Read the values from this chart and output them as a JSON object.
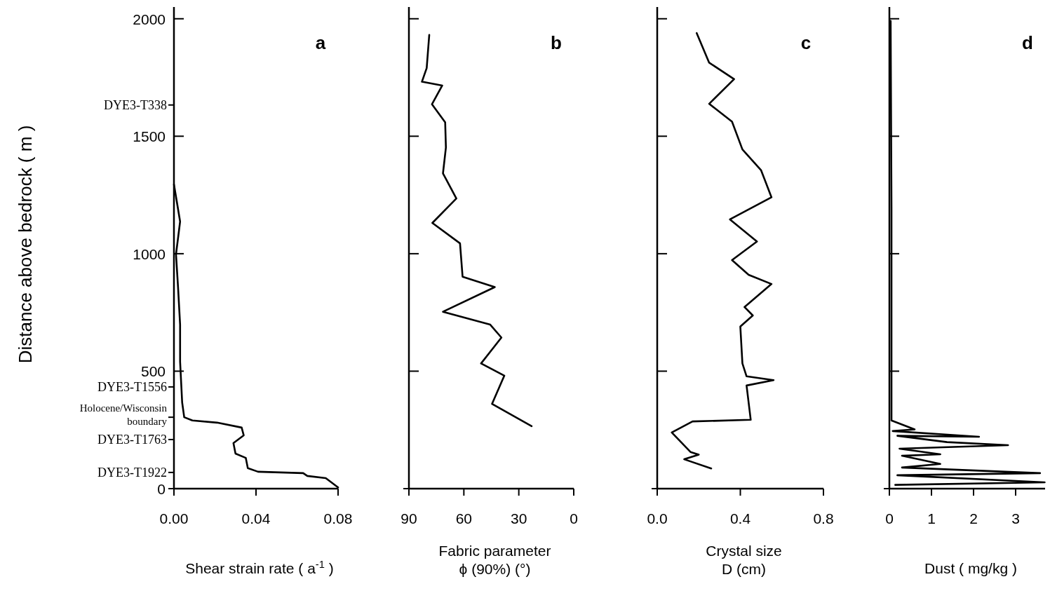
{
  "chart_data": [
    {
      "type": "line",
      "title": "a",
      "xlabel": "Shear strain rate ( a$^{-1}$ )",
      "ylabel": "Distance above bedrock ( m )",
      "xlim": [
        0,
        0.08
      ],
      "ylim": [
        0,
        2050
      ],
      "xticks": [
        {
          "value": 0,
          "label": "0.00"
        },
        {
          "value": 0.04,
          "label": "0.04"
        },
        {
          "value": 0.08,
          "label": "0.08"
        }
      ],
      "yticks": [
        0,
        500,
        1000,
        1500,
        2000,
        {
          "value": 1633,
          "label": "DYE3-T338"
        },
        {
          "value": 433,
          "label": "DYE3-T1556"
        },
        {
          "value": 304,
          "label": "Holocene/Wisconsin\nboundary"
        },
        {
          "value": 209,
          "label": "DYE3-T1763"
        },
        {
          "value": 69,
          "label": "DYE3-T1922"
        }
      ],
      "series": [
        {
          "color": "#000000",
          "x": [
            0,
            0.003,
            0.001,
            0.002,
            0.003,
            0.003,
            0.004,
            0.005,
            0.009,
            0.021,
            0.033,
            0.034,
            0.029,
            0.03,
            0.035,
            0.036,
            0.041,
            0.063,
            0.065,
            0.074,
            0.08
          ],
          "values": [
            1295,
            1137,
            997,
            857,
            698,
            540,
            367,
            304,
            290,
            281,
            260,
            227,
            194,
            149,
            131,
            87,
            72,
            66,
            54,
            45,
            5
          ]
        }
      ]
    },
    {
      "type": "line",
      "title": "b",
      "xlabel": "Fabric parameter\nϕ (90%)   (°)",
      "xlim": [
        90,
        0
      ],
      "ylim": [
        0,
        2050
      ],
      "xticks": [
        90,
        60,
        30,
        0
      ],
      "yticks": [
        0,
        500,
        1000,
        1500,
        2000
      ],
      "tick_labels": "x",
      "series": [
        {
          "color": "#000000",
          "x": [
            78.9,
            80.3,
            82.9,
            71.8,
            77.4,
            70.2,
            69.8,
            71.4,
            64.1,
            77.2,
            62.1,
            60.7,
            43.1,
            71.4,
            45.6,
            39.5,
            50.6,
            37.9,
            44.6,
            23
          ],
          "values": [
            1931,
            1790,
            1732,
            1716,
            1636,
            1559,
            1452,
            1342,
            1235,
            1131,
            1044,
            902,
            858,
            753,
            698,
            643,
            533,
            481,
            361,
            266
          ]
        }
      ]
    },
    {
      "type": "line",
      "title": "c",
      "xlabel": "Crystal size\nD (cm)",
      "xlim": [
        0,
        0.8
      ],
      "ylim": [
        0,
        2050
      ],
      "xticks": [
        {
          "value": 0,
          "label": "0.0"
        },
        {
          "value": 0.4,
          "label": "0.4"
        },
        {
          "value": 0.8,
          "label": "0.8"
        }
      ],
      "yticks": [
        0,
        500,
        1000,
        1500,
        2000
      ],
      "tick_labels": "x",
      "series": [
        {
          "color": "#000000",
          "x": [
            0.19,
            0.25,
            0.37,
            0.25,
            0.36,
            0.41,
            0.5,
            0.55,
            0.35,
            0.48,
            0.36,
            0.44,
            0.55,
            0.42,
            0.46,
            0.4,
            0.41,
            0.43,
            0.56,
            0.43,
            0.45,
            0.17,
            0.07,
            0.16,
            0.2,
            0.13,
            0.26
          ],
          "values": [
            1939,
            1813,
            1743,
            1638,
            1562,
            1444,
            1355,
            1240,
            1146,
            1052,
            973,
            910,
            871,
            773,
            737,
            690,
            533,
            478,
            462,
            439,
            293,
            286,
            239,
            156,
            145,
            125,
            86
          ]
        }
      ]
    },
    {
      "type": "line",
      "title": "d",
      "xlabel": "Dust ( mg/kg )",
      "xlim": [
        0,
        3.7
      ],
      "ylim": [
        0,
        2050
      ],
      "xticks": [
        0,
        1,
        2,
        3
      ],
      "yticks": [
        0,
        500,
        1000,
        1500,
        2000
      ],
      "tick_labels": "x",
      "series": [
        {
          "color": "#000000",
          "x": [
            0.03,
            0.05,
            0.05,
            0.6,
            0.08,
            2.13,
            0.19,
            1.37,
            2.82,
            0.24,
            1.21,
            0.3,
            1.21,
            0.3,
            3.58,
            0.19,
            3.69,
            0.14
          ],
          "values": [
            1991,
            1185,
            290,
            252,
            245,
            221,
            225,
            198,
            185,
            170,
            146,
            140,
            105,
            90,
            66,
            57,
            27,
            16
          ]
        }
      ]
    }
  ]
}
